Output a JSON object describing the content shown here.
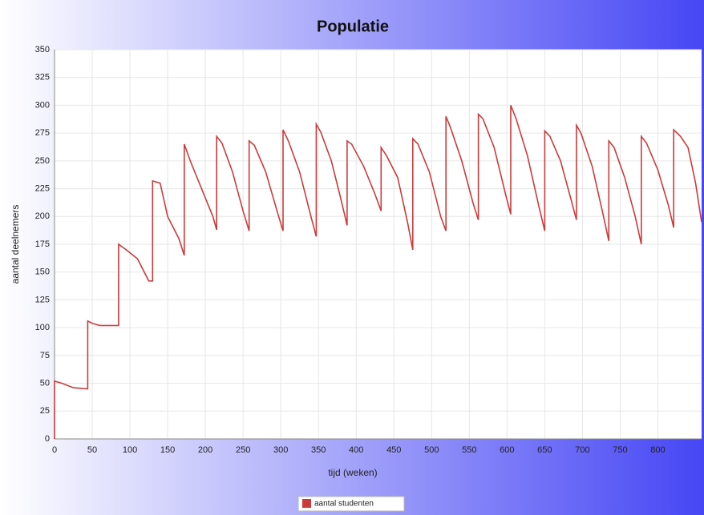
{
  "chart_data": {
    "type": "line",
    "title": "Populatie",
    "x_label": "tijd (weken)",
    "y_label": "aantal deelnemers",
    "xlim": [
      0,
      858
    ],
    "ylim": [
      0,
      350
    ],
    "xticks": [
      0,
      50,
      100,
      150,
      200,
      250,
      300,
      350,
      400,
      450,
      500,
      550,
      600,
      650,
      700,
      750,
      800
    ],
    "yticks": [
      0,
      25,
      50,
      75,
      100,
      125,
      150,
      175,
      200,
      225,
      250,
      275,
      300,
      325,
      350
    ],
    "grid": true,
    "legend": "bottom",
    "x": [
      0,
      0,
      10,
      25,
      44,
      44,
      50,
      60,
      85,
      85,
      95,
      110,
      125,
      130,
      130,
      140,
      150,
      165,
      172,
      172,
      180,
      195,
      210,
      215,
      215,
      222,
      236,
      250,
      258,
      258,
      265,
      280,
      295,
      303,
      303,
      310,
      325,
      340,
      347,
      347,
      353,
      367,
      380,
      388,
      388,
      394,
      410,
      425,
      433,
      433,
      440,
      455,
      468,
      475,
      475,
      482,
      497,
      512,
      519,
      519,
      525,
      540,
      555,
      562,
      562,
      568,
      583,
      598,
      605,
      605,
      612,
      627,
      642,
      650,
      650,
      657,
      671,
      685,
      692,
      692,
      698,
      713,
      728,
      735,
      735,
      742,
      756,
      770,
      778,
      778,
      785,
      800,
      814,
      821,
      821,
      830,
      840,
      850,
      858
    ],
    "series": [
      {
        "name": "aantal studenten",
        "color": "#cc3b3b",
        "values": [
          0,
          52,
          50,
          46,
          45,
          106,
          104,
          102,
          102,
          175,
          170,
          162,
          142,
          142,
          232,
          230,
          200,
          180,
          165,
          265,
          250,
          225,
          200,
          188,
          272,
          266,
          240,
          205,
          187,
          268,
          264,
          240,
          205,
          187,
          278,
          268,
          240,
          200,
          182,
          283,
          276,
          250,
          215,
          192,
          268,
          265,
          245,
          220,
          205,
          262,
          255,
          235,
          195,
          170,
          270,
          265,
          240,
          200,
          187,
          290,
          280,
          250,
          212,
          197,
          292,
          288,
          262,
          220,
          202,
          300,
          288,
          255,
          210,
          187,
          277,
          272,
          250,
          215,
          197,
          282,
          275,
          245,
          200,
          178,
          268,
          262,
          235,
          200,
          175,
          272,
          266,
          242,
          210,
          190,
          278,
          272,
          262,
          230,
          195
        ]
      }
    ]
  }
}
